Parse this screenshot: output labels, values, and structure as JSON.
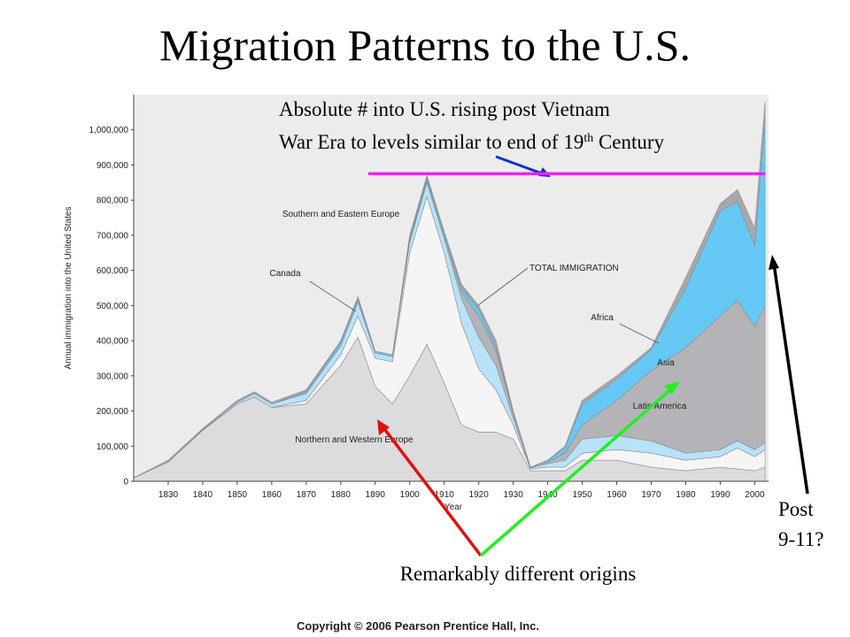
{
  "title": "Migration Patterns to the U.S.",
  "note_line1": "Absolute # into U.S. rising post Vietnam",
  "note_line2": [
    "War Era to levels similar to end of 19",
    "th",
    " Century"
  ],
  "post_note": [
    "Post",
    "9-11?"
  ],
  "origins_note": "Remarkably different origins",
  "copyright": "Copyright © 2006 Pearson Prentice Hall, Inc.",
  "chart_data": {
    "type": "stacked_area",
    "xlabel": "Year",
    "ylabel": "Annual immigration into the United States",
    "total_label": "TOTAL IMMIGRATION",
    "reference_line": 875000,
    "reference_color": "#ee22ee",
    "grid": false,
    "xlim": [
      1820,
      2004
    ],
    "ylim": [
      0,
      1100000
    ],
    "xticks": [
      1830,
      1840,
      1850,
      1860,
      1870,
      1880,
      1890,
      1900,
      1910,
      1920,
      1930,
      1940,
      1950,
      1960,
      1970,
      1980,
      1990,
      2000
    ],
    "yticks": [
      0,
      {
        "value": 100000,
        "label": "100,000"
      },
      {
        "value": 200000,
        "label": "200,000"
      },
      {
        "value": 300000,
        "label": "300,000"
      },
      {
        "value": 400000,
        "label": "400,000"
      },
      {
        "value": 500000,
        "label": "500,000"
      },
      {
        "value": 600000,
        "label": "600,000"
      },
      {
        "value": 700000,
        "label": "700,000"
      },
      {
        "value": 800000,
        "label": "800,000"
      },
      {
        "value": 900000,
        "label": "900,000"
      },
      {
        "value": 1000000,
        "label": "1,000,000"
      }
    ],
    "x": [
      1820,
      1830,
      1840,
      1850,
      1855,
      1860,
      1870,
      1880,
      1885,
      1890,
      1895,
      1900,
      1905,
      1910,
      1915,
      1920,
      1925,
      1930,
      1935,
      1940,
      1945,
      1950,
      1960,
      1970,
      1980,
      1990,
      1995,
      2000,
      2003
    ],
    "series": [
      {
        "name": "Northern and Western Europe",
        "color": "#dcdcde",
        "values": [
          10000,
          55000,
          145000,
          220000,
          240000,
          210000,
          220000,
          330000,
          410000,
          270000,
          220000,
          300000,
          390000,
          280000,
          160000,
          140000,
          140000,
          120000,
          30000,
          30000,
          30000,
          60000,
          60000,
          40000,
          30000,
          40000,
          35000,
          30000,
          40000
        ]
      },
      {
        "name": "Southern and Eastern Europe",
        "color": "#f5f5f6",
        "values": [
          0,
          0,
          0,
          0,
          0,
          0,
          10000,
          30000,
          60000,
          80000,
          120000,
          350000,
          420000,
          370000,
          290000,
          180000,
          120000,
          40000,
          5000,
          10000,
          10000,
          20000,
          30000,
          40000,
          30000,
          30000,
          60000,
          40000,
          50000
        ]
      },
      {
        "name": "Canada",
        "color": "#b8e2f8",
        "values": [
          0,
          0,
          2000,
          5000,
          10000,
          10000,
          20000,
          25000,
          40000,
          15000,
          15000,
          30000,
          40000,
          40000,
          70000,
          90000,
          70000,
          20000,
          3000,
          10000,
          20000,
          40000,
          40000,
          35000,
          20000,
          20000,
          20000,
          20000,
          20000
        ]
      },
      {
        "name": "Latin America",
        "color": "#b4b4b8",
        "values": [
          0,
          0,
          0,
          0,
          0,
          0,
          0,
          0,
          0,
          0,
          0,
          5000,
          5000,
          10000,
          20000,
          60000,
          40000,
          15000,
          2000,
          5000,
          20000,
          40000,
          100000,
          200000,
          300000,
          380000,
          400000,
          350000,
          390000
        ]
      },
      {
        "name": "Asia",
        "color": "#66c8f4",
        "values": [
          0,
          0,
          0,
          0,
          0,
          0,
          5000,
          10000,
          10000,
          5000,
          5000,
          10000,
          10000,
          10000,
          10000,
          20000,
          10000,
          5000,
          0,
          5000,
          15000,
          60000,
          60000,
          60000,
          170000,
          300000,
          280000,
          230000,
          530000
        ]
      },
      {
        "name": "Africa",
        "color": "#a8a8ac",
        "values": [
          0,
          5000,
          3000,
          5000,
          5000,
          5000,
          5000,
          5000,
          5000,
          0,
          0,
          5000,
          5000,
          0,
          10000,
          10000,
          20000,
          0,
          0,
          0,
          5000,
          10000,
          10000,
          5000,
          30000,
          20000,
          35000,
          50000,
          50000
        ]
      }
    ]
  }
}
